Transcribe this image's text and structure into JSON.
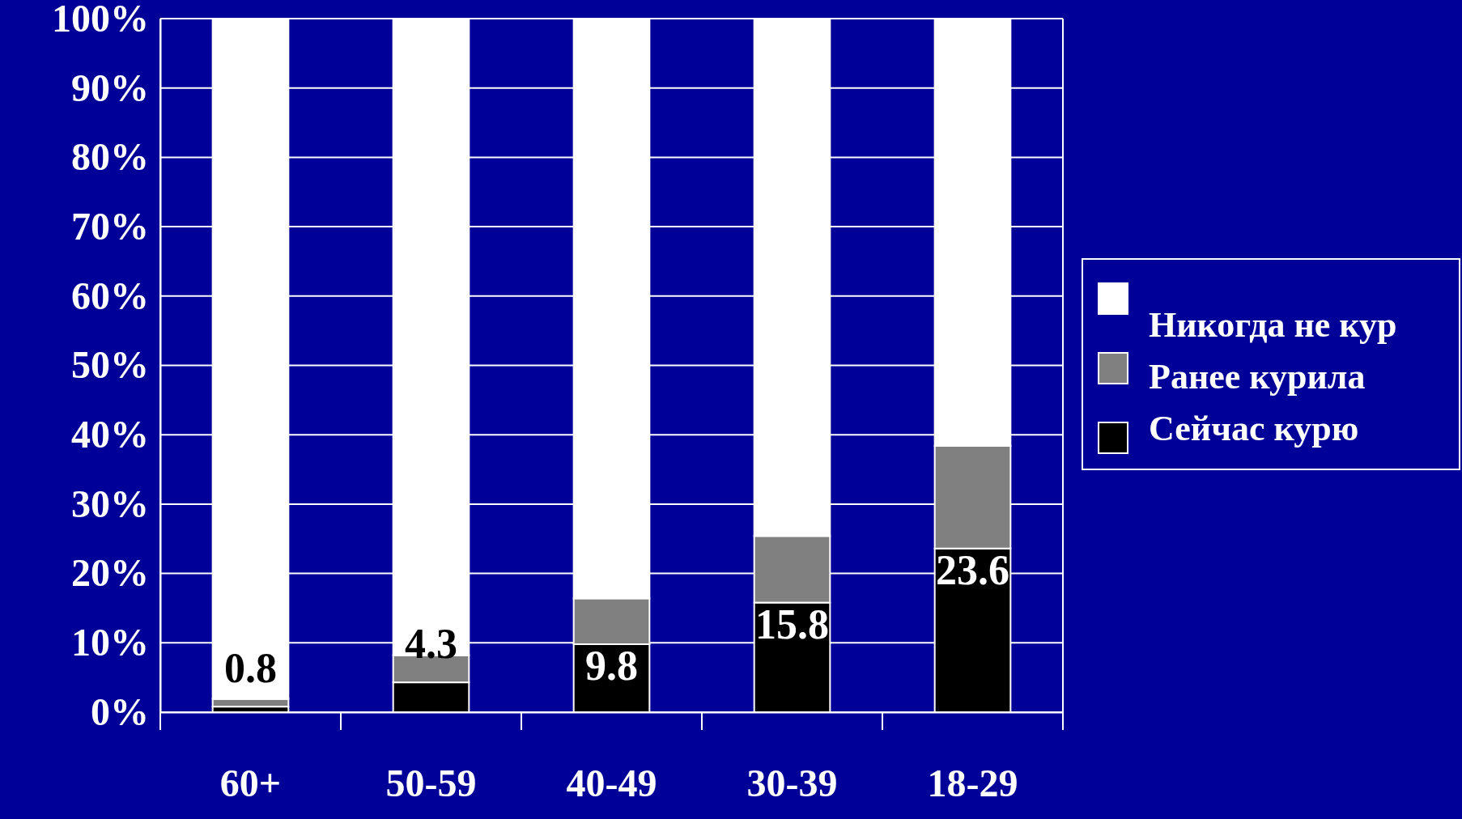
{
  "chart_data": {
    "type": "bar",
    "stacked": true,
    "categories": [
      "60+",
      "50-59",
      "40-49",
      "30-39",
      "18-29"
    ],
    "series": [
      {
        "name": "Сейчас курю",
        "color": "#000000",
        "values": [
          0.8,
          4.3,
          9.8,
          15.8,
          23.6
        ],
        "value_labels": [
          "0.8",
          "4.3",
          "9.8",
          "15.8",
          "23.6"
        ]
      },
      {
        "name": "Ранее курила",
        "color": "#808080",
        "values": [
          1.1,
          3.9,
          6.6,
          9.6,
          14.8
        ]
      },
      {
        "name": "Никогда не кур",
        "color": "#ffffff",
        "values": [
          98.1,
          91.8,
          83.6,
          74.6,
          61.6
        ]
      }
    ],
    "ylim": [
      0,
      100
    ],
    "yticks": [
      {
        "value": 0,
        "label": "0%"
      },
      {
        "value": 10,
        "label": "10%"
      },
      {
        "value": 20,
        "label": "20%"
      },
      {
        "value": 30,
        "label": "30%"
      },
      {
        "value": 40,
        "label": "40%"
      },
      {
        "value": 50,
        "label": "50%"
      },
      {
        "value": 60,
        "label": "60%"
      },
      {
        "value": 70,
        "label": "70%"
      },
      {
        "value": 80,
        "label": "80%"
      },
      {
        "value": 90,
        "label": "90%"
      },
      {
        "value": 100,
        "label": "100%"
      }
    ],
    "grid": "y",
    "legend": "right"
  }
}
